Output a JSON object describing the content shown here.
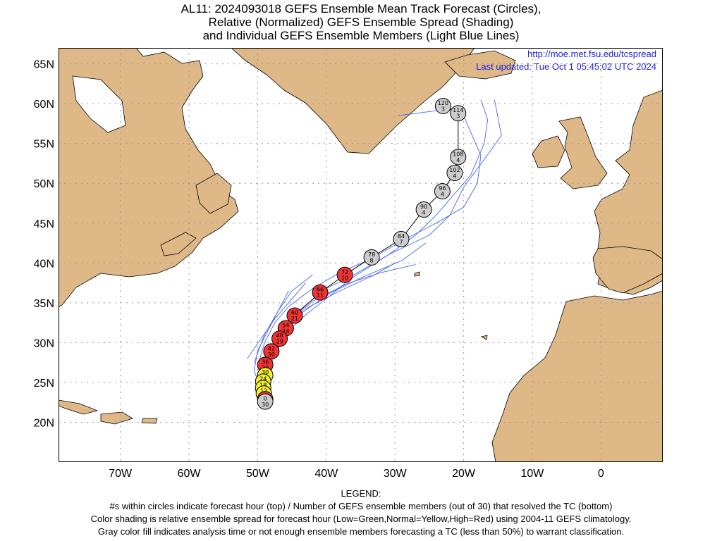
{
  "title_lines": [
    "AL11: 2024093018 GEFS Ensemble Mean Track Forecast (Circles),",
    "Relative (Normalized) GEFS Ensemble Spread (Shading)",
    "and Individual GEFS Ensemble Members (Light Blue Lines)"
  ],
  "url": "http://moe.met.fsu.edu/tcspread",
  "last_updated": "Last updated: Tue Oct 1 05:45:02 UTC 2024",
  "legend": {
    "heading": "LEGEND:",
    "lines": [
      "#s within circles indicate forecast hour (top) / Number of GEFS ensemble members (out of 30) that resolved the TC (bottom)",
      "Color shading is relative ensemble spread for forecast hour (Low=Green,Normal=Yellow,High=Red) using 2004-11 GEFS climatology.",
      "Gray color fill indicates analysis time or not enough ensemble members forecasting a TC (less than 50%) to warrant classification."
    ]
  },
  "colors": {
    "land": "#deb887",
    "ocean": "#ffffff",
    "grid": "#999999",
    "member_track": "#4466ee",
    "mean_track": "#000000",
    "low": "#33cc33",
    "normal": "#eeee33",
    "high": "#ee3333",
    "unclassified": "#cccccc"
  },
  "chart_data": {
    "type": "map",
    "lon_range": [
      -79,
      9
    ],
    "lat_range": [
      15,
      67
    ],
    "x_ticks": [
      {
        "lon": -70,
        "label": "70W"
      },
      {
        "lon": -60,
        "label": "60W"
      },
      {
        "lon": -50,
        "label": "50W"
      },
      {
        "lon": -40,
        "label": "40W"
      },
      {
        "lon": -30,
        "label": "30W"
      },
      {
        "lon": -20,
        "label": "20W"
      },
      {
        "lon": -10,
        "label": "10W"
      },
      {
        "lon": 0,
        "label": "0"
      }
    ],
    "y_ticks": [
      {
        "lat": 20,
        "label": "20N"
      },
      {
        "lat": 25,
        "label": "25N"
      },
      {
        "lat": 30,
        "label": "30N"
      },
      {
        "lat": 35,
        "label": "35N"
      },
      {
        "lat": 40,
        "label": "40N"
      },
      {
        "lat": 45,
        "label": "45N"
      },
      {
        "lat": 50,
        "label": "50N"
      },
      {
        "lat": 55,
        "label": "55N"
      },
      {
        "lat": 60,
        "label": "60N"
      },
      {
        "lat": 65,
        "label": "65N"
      }
    ],
    "grid": true,
    "mean_track": [
      {
        "hour": "0",
        "members": "30",
        "lon": -48.9,
        "lat": 22.6,
        "spread": "unclassified"
      },
      {
        "hour": "6",
        "members": "30",
        "lon": -48.9,
        "lat": 22.9,
        "spread": "high"
      },
      {
        "hour": "12",
        "members": "30",
        "lon": -49.1,
        "lat": 23.6,
        "spread": "normal"
      },
      {
        "hour": "18",
        "members": "30",
        "lon": -49.2,
        "lat": 24.3,
        "spread": "normal"
      },
      {
        "hour": "24",
        "members": "30",
        "lon": -49.2,
        "lat": 25.1,
        "spread": "normal"
      },
      {
        "hour": "30",
        "members": "30",
        "lon": -48.9,
        "lat": 25.9,
        "spread": "normal"
      },
      {
        "hour": "36",
        "members": "30",
        "lon": -48.9,
        "lat": 27.2,
        "spread": "high"
      },
      {
        "hour": "42",
        "members": "30",
        "lon": -48.0,
        "lat": 28.9,
        "spread": "high"
      },
      {
        "hour": "48",
        "members": "29",
        "lon": -46.8,
        "lat": 30.5,
        "spread": "high"
      },
      {
        "hour": "54",
        "members": "24",
        "lon": -45.9,
        "lat": 31.8,
        "spread": "high"
      },
      {
        "hour": "60",
        "members": "21",
        "lon": -44.6,
        "lat": 33.4,
        "spread": "high"
      },
      {
        "hour": "66",
        "members": "11",
        "lon": -40.9,
        "lat": 36.3,
        "spread": "high"
      },
      {
        "hour": "72",
        "members": "10",
        "lon": -37.3,
        "lat": 38.5,
        "spread": "high"
      },
      {
        "hour": "78",
        "members": "8",
        "lon": -33.4,
        "lat": 40.7,
        "spread": "unclassified"
      },
      {
        "hour": "84",
        "members": "7",
        "lon": -29.1,
        "lat": 43.0,
        "spread": "unclassified"
      },
      {
        "hour": "90",
        "members": "4",
        "lon": -25.8,
        "lat": 46.7,
        "spread": "unclassified"
      },
      {
        "hour": "96",
        "members": "4",
        "lon": -23.1,
        "lat": 49.0,
        "spread": "unclassified"
      },
      {
        "hour": "102",
        "members": "4",
        "lon": -21.3,
        "lat": 51.3,
        "spread": "unclassified"
      },
      {
        "hour": "108",
        "members": "4",
        "lon": -20.8,
        "lat": 53.3,
        "spread": "unclassified"
      },
      {
        "hour": "114",
        "members": "3",
        "lon": -20.8,
        "lat": 58.8,
        "spread": "unclassified"
      },
      {
        "hour": "120",
        "members": "3",
        "lon": -23.0,
        "lat": 59.7,
        "spread": "unclassified"
      }
    ],
    "member_tracks": [
      [
        [
          -49.5,
          24.0
        ],
        [
          -50.5,
          26.5
        ],
        [
          -50.0,
          29.0
        ],
        [
          -48.5,
          31.5
        ],
        [
          -47.0,
          34.0
        ],
        [
          -45.0,
          36.5
        ],
        [
          -42.0,
          38.5
        ]
      ],
      [
        [
          -50.0,
          27.0
        ],
        [
          -49.0,
          30.0
        ],
        [
          -47.5,
          32.5
        ],
        [
          -45.5,
          34.5
        ],
        [
          -42.0,
          36.8
        ],
        [
          -38.0,
          38.8
        ],
        [
          -33.5,
          40.5
        ],
        [
          -28.5,
          43.0
        ],
        [
          -24.0,
          45.0
        ],
        [
          -20.0,
          47.0
        ],
        [
          -18.0,
          50.0
        ],
        [
          -17.5,
          53.5
        ],
        [
          -20.5,
          59.5
        ],
        [
          -29.5,
          58.5
        ]
      ],
      [
        [
          -48.9,
          23.0
        ],
        [
          -49.5,
          26.0
        ],
        [
          -48.5,
          29.0
        ],
        [
          -46.5,
          31.5
        ],
        [
          -44.0,
          34.0
        ],
        [
          -40.0,
          36.8
        ],
        [
          -36.0,
          38.5
        ],
        [
          -31.0,
          41.0
        ],
        [
          -27.0,
          43.5
        ],
        [
          -24.0,
          46.0
        ],
        [
          -21.5,
          48.5
        ],
        [
          -19.0,
          51.0
        ],
        [
          -17.0,
          55.0
        ],
        [
          -16.5,
          58.0
        ],
        [
          -17.5,
          60.5
        ]
      ],
      [
        [
          -49.0,
          24.5
        ],
        [
          -48.5,
          28.0
        ],
        [
          -46.5,
          31.0
        ],
        [
          -43.5,
          33.8
        ],
        [
          -39.5,
          36.2
        ],
        [
          -34.5,
          38.3
        ],
        [
          -29.0,
          40.3
        ],
        [
          -25.5,
          42.5
        ]
      ],
      [
        [
          -49.2,
          25.5
        ],
        [
          -48.0,
          29.5
        ],
        [
          -45.5,
          32.5
        ],
        [
          -42.0,
          35.2
        ],
        [
          -37.0,
          37.4
        ],
        [
          -32.0,
          38.8
        ],
        [
          -27.0,
          39.8
        ]
      ],
      [
        [
          -49.5,
          26.0
        ],
        [
          -48.5,
          29.0
        ],
        [
          -46.0,
          32.0
        ],
        [
          -42.5,
          34.5
        ],
        [
          -38.0,
          36.5
        ],
        [
          -33.0,
          38.5
        ],
        [
          -30.0,
          40.0
        ]
      ],
      [
        [
          -49.0,
          25.0
        ],
        [
          -47.5,
          28.5
        ],
        [
          -45.5,
          31.5
        ],
        [
          -43.0,
          33.5
        ],
        [
          -40.0,
          35.5
        ],
        [
          -36.5,
          38.0
        ],
        [
          -31.0,
          41.0
        ],
        [
          -25.0,
          43.5
        ],
        [
          -22.0,
          46.0
        ],
        [
          -20.0,
          49.5
        ],
        [
          -17.0,
          53.0
        ],
        [
          -14.5,
          56.0
        ],
        [
          -15.5,
          60.5
        ]
      ],
      [
        [
          -51.5,
          28.0
        ],
        [
          -49.5,
          30.5
        ],
        [
          -47.5,
          33.0
        ],
        [
          -45.0,
          35.5
        ],
        [
          -43.0,
          37.5
        ]
      ],
      [
        [
          -50.5,
          27.5
        ],
        [
          -49.0,
          31.0
        ],
        [
          -47.0,
          34.0
        ],
        [
          -45.5,
          36.5
        ]
      ]
    ]
  }
}
